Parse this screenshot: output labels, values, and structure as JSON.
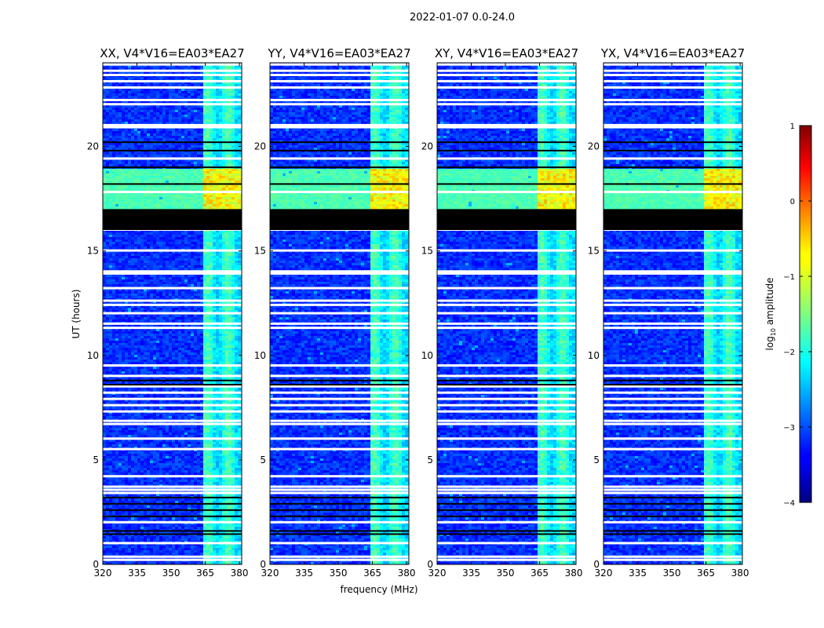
{
  "figure": {
    "title": "2022-01-07 0.0-24.0"
  },
  "chart_data": {
    "type": "heatmap",
    "title": "2022-01-07 0.0-24.0",
    "xlabel": "frequency (MHz)",
    "ylabel": "UT (hours)",
    "xlim": [
      320,
      381
    ],
    "ylim": [
      0,
      24
    ],
    "x_ticks": [
      320,
      335,
      350,
      365,
      380
    ],
    "x_tick_labels": [
      "320",
      "335",
      "350",
      "365",
      "380"
    ],
    "y_ticks": [
      0,
      5,
      10,
      15,
      20
    ],
    "y_tick_labels": [
      "0",
      "5",
      "10",
      "15",
      "20"
    ],
    "panels": [
      {
        "title": "XX, V4*V16=EA03*EA27",
        "polarization": "XX"
      },
      {
        "title": "YY, V4*V16=EA03*EA27",
        "polarization": "YY"
      },
      {
        "title": "XY, V4*V16=EA03*EA27",
        "polarization": "XY"
      },
      {
        "title": "YX, V4*V16=EA03*EA27",
        "polarization": "YX"
      }
    ],
    "colorbar": {
      "label_main": "log",
      "label_sub": "10",
      "label_rest": " amplitude",
      "range": [
        -4,
        1
      ],
      "ticks": [
        1,
        0,
        -1,
        -2,
        -3,
        -4
      ],
      "tick_labels": [
        "1",
        "0",
        "−1",
        "−2",
        "−3",
        "−4"
      ],
      "colormap": "jet"
    },
    "structure": {
      "flagged_black_band_hours": [
        16.0,
        17.0
      ],
      "rfi_band_mhz": [
        363,
        381
      ],
      "rfi_bright_band_hours": [
        17.0,
        19.0
      ],
      "white_flag_rows_hours": [
        0.2,
        0.35,
        1.0,
        2.0,
        3.4,
        3.55,
        3.7,
        4.2,
        5.5,
        6.0,
        6.7,
        6.85,
        7.3,
        7.6,
        7.9,
        8.2,
        8.5,
        9.0,
        9.5,
        11.3,
        11.5,
        12.0,
        12.4,
        12.6,
        13.2,
        13.9,
        14.0,
        15.0,
        16.0,
        17.8,
        19.4,
        20.9,
        21.0,
        22.0,
        22.2,
        22.8,
        23.1,
        23.4,
        23.6,
        23.9
      ],
      "black_flag_rows_hours": [
        1.45,
        1.6,
        2.3,
        2.6,
        2.9,
        3.2,
        8.6,
        8.8,
        18.2,
        19.0,
        19.8,
        20.2
      ]
    },
    "colors": {
      "background_low": "#0033cc",
      "flag_black": "#000000",
      "flag_white": "#ffffff"
    }
  }
}
